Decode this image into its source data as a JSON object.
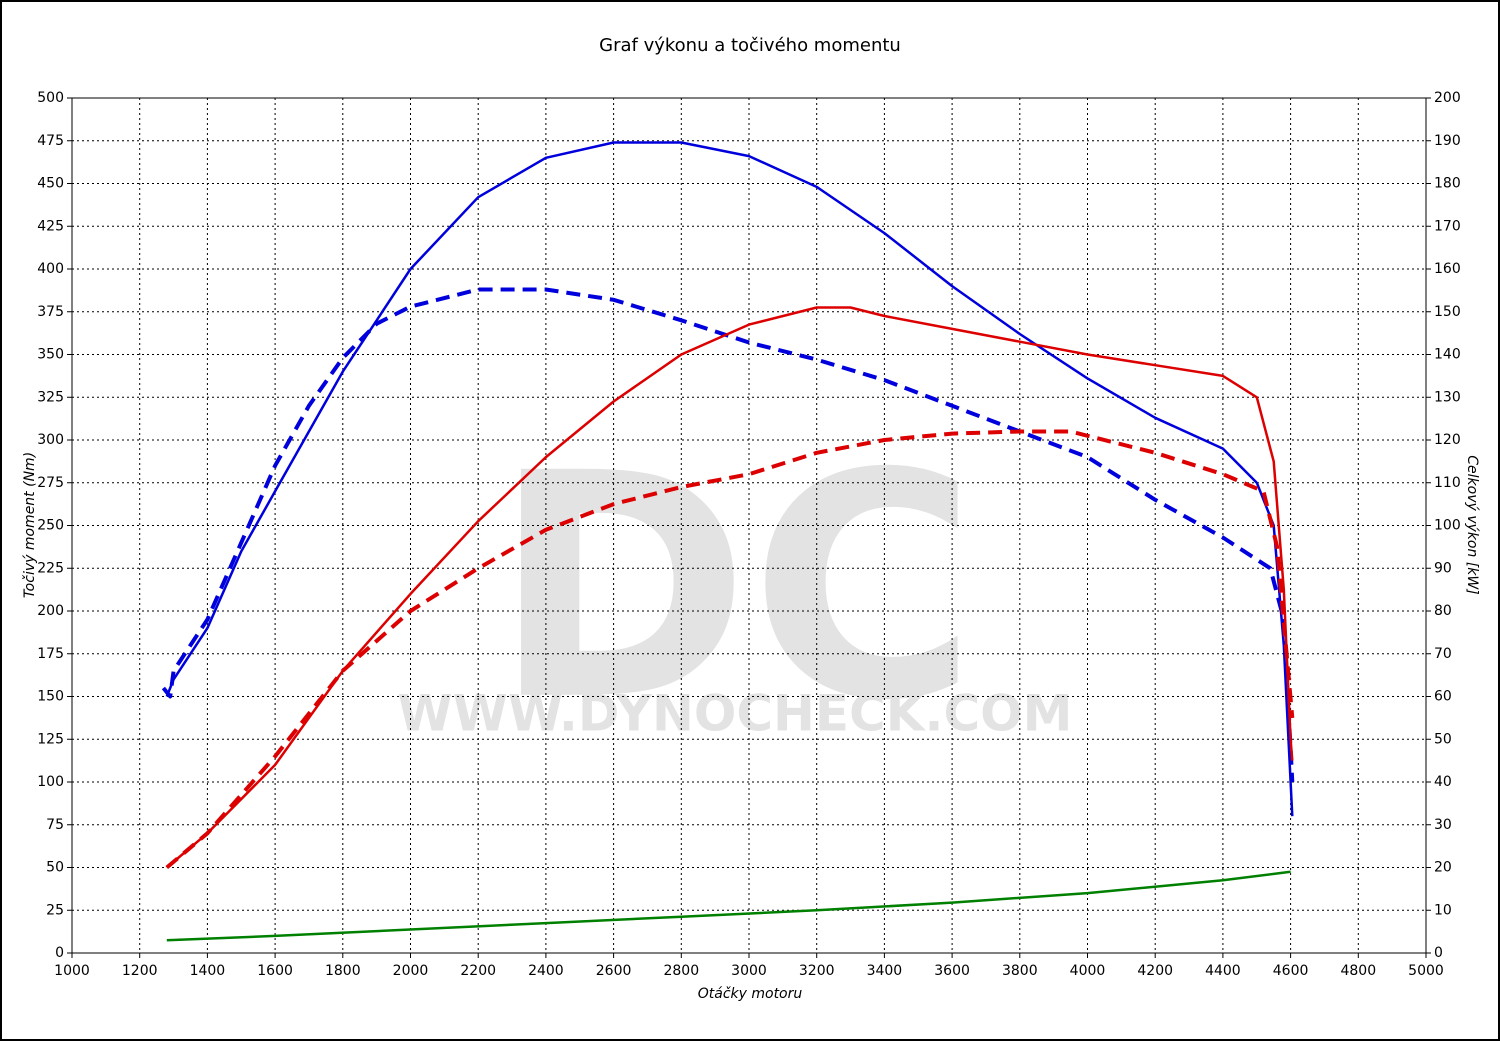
{
  "chart_data": {
    "type": "line",
    "title": "Graf výkonu a točivého momentu",
    "xlabel": "Otáčky motoru",
    "ylabel": "Točivý moment (Nm)",
    "y2label": "Celkový výkon [kW]",
    "watermark": [
      "DC",
      "WWW.DYNOCHECK.COM"
    ],
    "xlim": [
      1000,
      5000
    ],
    "xticks": [
      1000,
      1200,
      1400,
      1600,
      1800,
      2000,
      2200,
      2400,
      2600,
      2800,
      3000,
      3200,
      3400,
      3600,
      3800,
      4000,
      4200,
      4400,
      4600,
      4800,
      5000
    ],
    "ylim": [
      0,
      500
    ],
    "yticks": [
      0,
      25,
      50,
      75,
      100,
      125,
      150,
      175,
      200,
      225,
      250,
      275,
      300,
      325,
      350,
      375,
      400,
      425,
      450,
      475,
      500
    ],
    "y2lim": [
      0,
      200
    ],
    "y2ticks": [
      0,
      10,
      20,
      30,
      40,
      50,
      60,
      70,
      80,
      90,
      100,
      110,
      120,
      130,
      140,
      150,
      160,
      170,
      180,
      190,
      200
    ],
    "grid": true,
    "series": [
      {
        "color": "#0000dd",
        "style": "solid",
        "x": [
          1280,
          1300,
          1400,
          1500,
          1600,
          1700,
          1800,
          1900,
          2000,
          2200,
          2400,
          2600,
          2800,
          3000,
          3200,
          3400,
          3600,
          3800,
          4000,
          4200,
          4400,
          4500,
          4550,
          4580,
          4605
        ],
        "values": [
          150,
          160,
          190,
          235,
          270,
          305,
          340,
          370,
          400,
          442,
          465,
          474,
          474,
          466,
          448,
          421,
          390,
          362,
          336,
          313,
          295,
          275,
          250,
          180,
          80
        ]
      },
      {
        "color": "#0000dd",
        "style": "dashed",
        "x": [
          1270,
          1290,
          1300,
          1400,
          1500,
          1600,
          1700,
          1800,
          1900,
          2000,
          2200,
          2400,
          2600,
          2800,
          3000,
          3200,
          3400,
          3600,
          3800,
          4000,
          4200,
          4400,
          4540,
          4580,
          4605
        ],
        "values": [
          155,
          150,
          165,
          195,
          240,
          285,
          320,
          348,
          368,
          378,
          388,
          388,
          382,
          370,
          357,
          347,
          335,
          320,
          305,
          290,
          265,
          243,
          225,
          195,
          100
        ]
      },
      {
        "color": "#dd0000",
        "style": "solid",
        "axis": "y2",
        "x": [
          1280,
          1400,
          1600,
          1800,
          2000,
          2200,
          2400,
          2600,
          2800,
          3000,
          3200,
          3300,
          3400,
          3600,
          3800,
          4000,
          4200,
          4400,
          4500,
          4550,
          4580,
          4600,
          4605
        ],
        "values": [
          20,
          28,
          44,
          66,
          84,
          101,
          116,
          129,
          140,
          147,
          151,
          151,
          149,
          146,
          143,
          140,
          137.5,
          135,
          130,
          115,
          85,
          50,
          45
        ]
      },
      {
        "color": "#dd0000",
        "style": "dashed",
        "axis": "y2",
        "x": [
          1280,
          1400,
          1600,
          1800,
          2000,
          2200,
          2400,
          2600,
          2800,
          3000,
          3200,
          3400,
          3600,
          3800,
          3950,
          4200,
          4400,
          4520,
          4560,
          4605
        ],
        "values": [
          20,
          28,
          46,
          66,
          80,
          90,
          99,
          105,
          109,
          112,
          117,
          120,
          121.5,
          122,
          122,
          117,
          112,
          108,
          95,
          55
        ]
      },
      {
        "color": "#008000",
        "style": "solid",
        "axis": "y2",
        "x": [
          1280,
          1600,
          2000,
          2400,
          2800,
          3200,
          3600,
          4000,
          4400,
          4600
        ],
        "values": [
          3,
          4,
          5.5,
          7,
          8.5,
          10,
          11.8,
          14,
          17,
          19
        ]
      }
    ]
  }
}
